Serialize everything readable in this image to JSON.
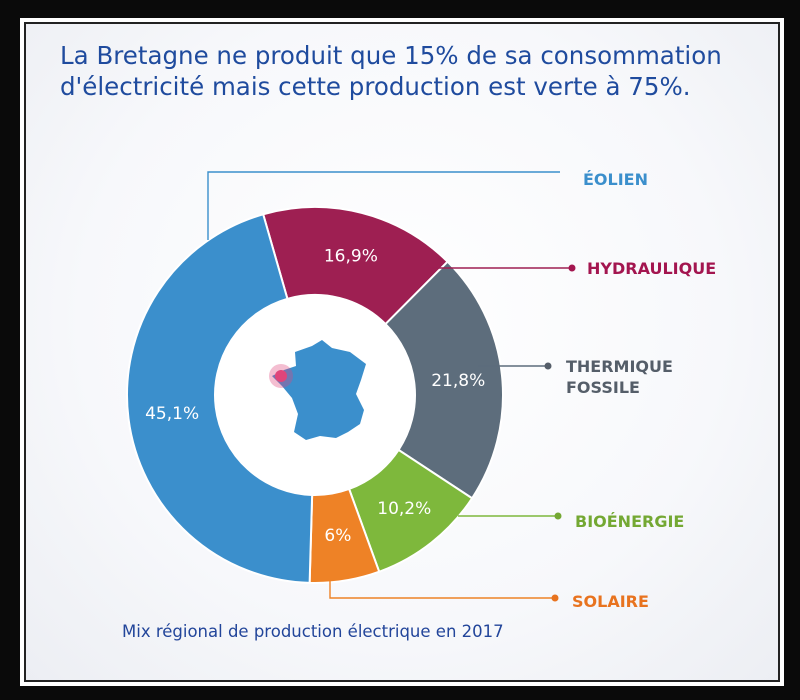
{
  "title_line1": "La Bretagne ne produit que 15% de sa consommation",
  "title_line2": "d'électricité mais cette production est verte à 75%.",
  "caption": "Mix régional de production électrique en 2017",
  "chart_data": {
    "type": "pie",
    "variant": "donut",
    "title": "La Bretagne ne produit que 15% de sa consommation d'électricité mais cette production est verte à 75%.",
    "caption": "Mix régional de production électrique en 2017",
    "slices": [
      {
        "name": "ÉOLIEN",
        "name_lines": [
          "ÉOLIEN"
        ],
        "value": 45.1,
        "label": "45,1%",
        "color": "#3b8fcc",
        "label_color": "#3b8fcc"
      },
      {
        "name": "HYDRAULIQUE",
        "name_lines": [
          "HYDRAULIQUE"
        ],
        "value": 16.9,
        "label": "16,9%",
        "color": "#9e1f52",
        "label_color": "#a3154f"
      },
      {
        "name": "THERMIQUE FOSSILE",
        "name_lines": [
          "THERMIQUE",
          "FOSSILE"
        ],
        "value": 21.8,
        "label": "21,8%",
        "color": "#5d6d7c",
        "label_color": "#555e69"
      },
      {
        "name": "BIOÉNERGIE",
        "name_lines": [
          "BIOÉNERGIE"
        ],
        "value": 10.2,
        "label": "10,2%",
        "color": "#7eb83c",
        "label_color": "#74a833"
      },
      {
        "name": "SOLAIRE",
        "name_lines": [
          "SOLAIRE"
        ],
        "value": 6,
        "label": "6%",
        "color": "#ee8226",
        "label_color": "#e8731f"
      }
    ],
    "center_icon": "france-map-icon",
    "center_icon_color": "#3b8fcc",
    "highlight_color": "#e0457a"
  }
}
